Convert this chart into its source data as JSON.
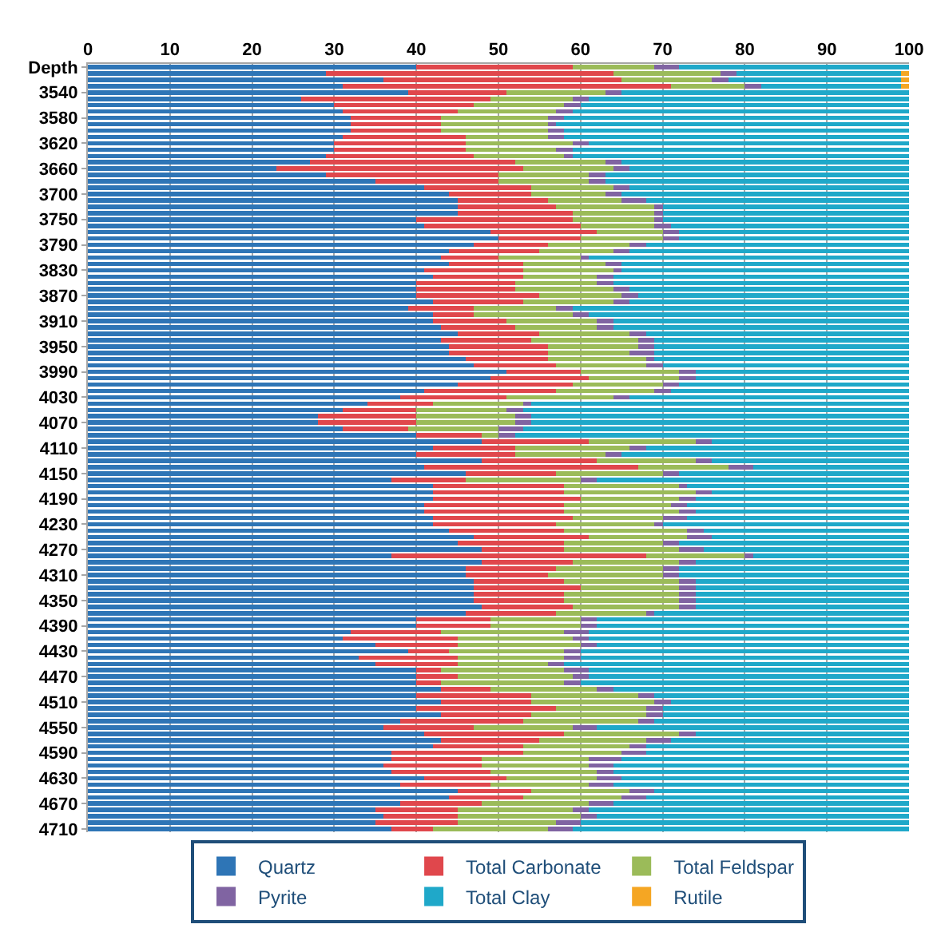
{
  "chart_data": {
    "type": "bar",
    "orientation": "horizontal",
    "stacked": true,
    "categories": [
      "Depth",
      null,
      null,
      null,
      "3540",
      null,
      null,
      null,
      "3580",
      null,
      null,
      null,
      "3620",
      null,
      null,
      null,
      "3660",
      null,
      null,
      null,
      "3700",
      null,
      null,
      null,
      "3750",
      null,
      null,
      null,
      "3790",
      null,
      null,
      null,
      "3830",
      null,
      null,
      null,
      "3870",
      null,
      null,
      null,
      "3910",
      null,
      null,
      null,
      "3950",
      null,
      null,
      null,
      "3990",
      null,
      null,
      null,
      "4030",
      null,
      null,
      null,
      "4070",
      null,
      null,
      null,
      "4110",
      null,
      null,
      null,
      "4150",
      null,
      null,
      null,
      "4190",
      null,
      null,
      null,
      "4230",
      null,
      null,
      null,
      "4270",
      null,
      null,
      null,
      "4310",
      null,
      null,
      null,
      "4350",
      null,
      null,
      null,
      "4390",
      null,
      null,
      null,
      "4430",
      null,
      null,
      null,
      "4470",
      null,
      null,
      null,
      "4510",
      null,
      null,
      null,
      "4550",
      null,
      null,
      null,
      "4590",
      null,
      null,
      null,
      "4630",
      null,
      null,
      null,
      "4670",
      null,
      null,
      null,
      "4710"
    ],
    "series": [
      {
        "name": "Quartz",
        "color": "#2e75b6",
        "values": [
          40,
          29,
          36,
          31,
          39,
          26,
          30,
          31,
          32,
          32,
          32,
          31,
          30,
          30,
          29,
          27,
          23,
          29,
          35,
          41,
          44,
          45,
          45,
          45,
          40,
          41,
          49,
          50,
          47,
          44,
          43,
          44,
          41,
          42,
          40,
          40,
          40,
          42,
          39,
          42,
          42,
          43,
          45,
          43,
          44,
          44,
          46,
          47,
          51,
          49,
          45,
          41,
          38,
          34,
          31,
          28,
          28,
          31,
          40,
          48,
          42,
          40,
          48,
          41,
          46,
          37,
          42,
          42,
          42,
          41,
          41,
          42,
          42,
          44,
          47,
          45,
          48,
          37,
          48,
          46,
          46,
          47,
          47,
          47,
          47,
          48,
          46,
          40,
          40,
          32,
          31,
          35,
          39,
          33,
          35,
          40,
          40,
          40,
          43,
          40,
          43,
          40,
          43,
          38,
          36,
          41,
          43,
          42,
          37,
          37,
          36,
          37,
          41,
          38,
          45,
          44,
          38,
          35,
          36,
          35,
          37
        ]
      },
      {
        "name": "Total Carbonate",
        "color": "#e0474c",
        "values": [
          19,
          35,
          29,
          40,
          12,
          23,
          17,
          14,
          11,
          11,
          11,
          15,
          16,
          16,
          18,
          25,
          30,
          21,
          15,
          13,
          10,
          11,
          12,
          14,
          19,
          19,
          13,
          10,
          9,
          11,
          7,
          9,
          12,
          11,
          12,
          12,
          15,
          11,
          8,
          5,
          9,
          9,
          10,
          11,
          12,
          12,
          10,
          10,
          9,
          12,
          14,
          16,
          13,
          8,
          9,
          12,
          12,
          8,
          8,
          13,
          10,
          12,
          14,
          26,
          11,
          9,
          16,
          16,
          18,
          17,
          17,
          17,
          15,
          14,
          14,
          13,
          10,
          31,
          11,
          11,
          10,
          11,
          13,
          11,
          11,
          11,
          11,
          9,
          9,
          11,
          14,
          10,
          5,
          12,
          10,
          3,
          5,
          3,
          6,
          14,
          11,
          17,
          11,
          15,
          11,
          17,
          12,
          11,
          16,
          11,
          12,
          12,
          10,
          11,
          9,
          9,
          10,
          10,
          9,
          10,
          5
        ]
      },
      {
        "name": "Total Feldspar",
        "color": "#9bbb59",
        "values": [
          10,
          13,
          11,
          9,
          12,
          10,
          11,
          12,
          13,
          13,
          13,
          10,
          13,
          11,
          11,
          11,
          11,
          11,
          11,
          10,
          9,
          9,
          12,
          10,
          10,
          9,
          8,
          10,
          10,
          9,
          10,
          10,
          11,
          9,
          10,
          12,
          10,
          11,
          10,
          12,
          11,
          10,
          11,
          13,
          11,
          10,
          12,
          11,
          12,
          11,
          11,
          12,
          13,
          11,
          11,
          12,
          12,
          11,
          2,
          13,
          14,
          11,
          12,
          11,
          13,
          14,
          14,
          16,
          12,
          13,
          14,
          11,
          12,
          15,
          12,
          12,
          14,
          12,
          13,
          13,
          14,
          14,
          12,
          14,
          14,
          13,
          11,
          11,
          11,
          15,
          14,
          15,
          14,
          13,
          11,
          15,
          14,
          15,
          13,
          13,
          15,
          11,
          14,
          14,
          12,
          14,
          13,
          13,
          12,
          13,
          13,
          13,
          11,
          12,
          12,
          12,
          13,
          14,
          15,
          12,
          14
        ]
      },
      {
        "name": "Pyrite",
        "color": "#8064a2",
        "values": [
          3,
          2,
          2,
          2,
          2,
          2,
          2,
          2,
          2,
          1,
          2,
          2,
          2,
          2,
          1,
          2,
          2,
          2,
          2,
          2,
          2,
          3,
          1,
          1,
          1,
          2,
          2,
          2,
          2,
          2,
          1,
          2,
          1,
          2,
          2,
          2,
          2,
          2,
          2,
          2,
          2,
          2,
          2,
          2,
          2,
          3,
          1,
          2,
          2,
          2,
          2,
          2,
          2,
          1,
          2,
          2,
          2,
          3,
          2,
          2,
          2,
          2,
          2,
          3,
          2,
          2,
          1,
          2,
          2,
          2,
          2,
          3,
          1,
          2,
          3,
          2,
          3,
          1,
          2,
          2,
          2,
          2,
          2,
          2,
          2,
          2,
          1,
          2,
          2,
          3,
          2,
          2,
          2,
          2,
          2,
          3,
          2,
          2,
          2,
          2,
          2,
          2,
          2,
          2,
          3,
          2,
          3,
          2,
          3,
          4,
          3,
          2,
          3,
          3,
          3,
          3,
          3,
          2,
          2,
          3,
          3
        ]
      },
      {
        "name": "Total Clay",
        "color": "#1fa8c9",
        "values": [
          28,
          20,
          21,
          17,
          35,
          39,
          40,
          41,
          42,
          43,
          42,
          42,
          39,
          41,
          41,
          35,
          34,
          37,
          37,
          34,
          35,
          32,
          30,
          30,
          30,
          29,
          28,
          28,
          32,
          34,
          39,
          35,
          35,
          36,
          36,
          34,
          33,
          34,
          41,
          39,
          36,
          36,
          32,
          31,
          31,
          31,
          31,
          30,
          26,
          26,
          28,
          29,
          34,
          46,
          47,
          46,
          46,
          47,
          48,
          24,
          32,
          35,
          24,
          19,
          28,
          38,
          27,
          24,
          26,
          27,
          26,
          27,
          30,
          25,
          24,
          28,
          25,
          19,
          26,
          28,
          28,
          26,
          26,
          26,
          26,
          26,
          31,
          38,
          38,
          39,
          39,
          38,
          40,
          40,
          42,
          39,
          39,
          40,
          36,
          31,
          29,
          30,
          30,
          31,
          38,
          26,
          29,
          32,
          32,
          35,
          36,
          36,
          35,
          36,
          31,
          32,
          36,
          39,
          38,
          40,
          41
        ]
      },
      {
        "name": "Rutile",
        "color": "#f5a623",
        "values": [
          0,
          1,
          1,
          1,
          0,
          0,
          0,
          0,
          0,
          0,
          0,
          0,
          0,
          0,
          0,
          0,
          0,
          0,
          0,
          0,
          0,
          0,
          0,
          0,
          0,
          0,
          0,
          0,
          0,
          0,
          0,
          0,
          0,
          0,
          0,
          0,
          0,
          0,
          0,
          0,
          0,
          0,
          0,
          0,
          0,
          0,
          0,
          0,
          0,
          0,
          0,
          0,
          0,
          0,
          0,
          0,
          0,
          0,
          0,
          0,
          0,
          0,
          0,
          0,
          0,
          0,
          0,
          0,
          0,
          0,
          0,
          0,
          0,
          0,
          0,
          0,
          0,
          0,
          0,
          0,
          0,
          0,
          0,
          0,
          0,
          0,
          0,
          0,
          0,
          0,
          0,
          0,
          0,
          0,
          0,
          0,
          0,
          0,
          0,
          0,
          0,
          0,
          0,
          0,
          0,
          0,
          0,
          0,
          0,
          0,
          0,
          0,
          0,
          0,
          0,
          0,
          0,
          0,
          0,
          0,
          0
        ]
      }
    ],
    "xlim": [
      0,
      100
    ],
    "xticks": [
      0,
      10,
      20,
      30,
      40,
      50,
      60,
      70,
      80,
      90,
      100
    ],
    "grid": "x",
    "legend": "bottom"
  }
}
